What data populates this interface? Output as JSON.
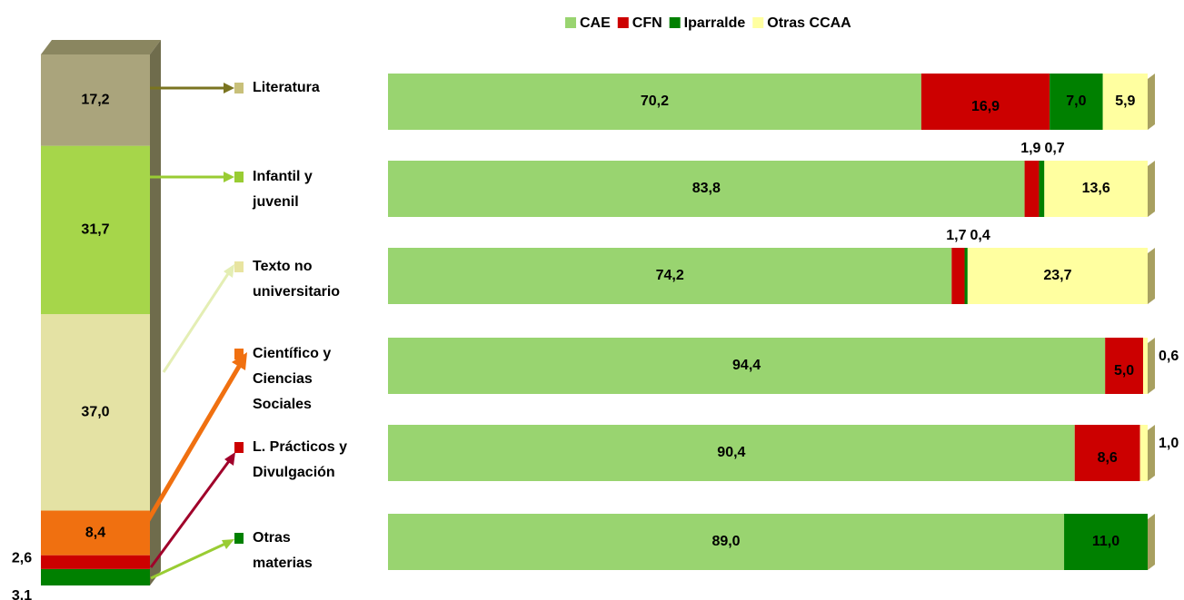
{
  "chart_data": [
    {
      "type": "stacked-column",
      "values": [
        3.1,
        2.6,
        8.4,
        37.0,
        31.7,
        17.2
      ],
      "value_labels": [
        "3,1",
        "2,6",
        "8,4",
        "37,0",
        "31,7",
        "17,2"
      ],
      "colors": [
        "#008000",
        "#cc0000",
        "#f07010",
        "#e4e2a4",
        "#a6d64a",
        "#aaa47c"
      ],
      "ylim": [
        0,
        100
      ]
    },
    {
      "type": "stacked-hbar",
      "categories": [
        "Literatura",
        "Infantil y\njuvenil",
        "Texto no\nuniversitario",
        "Científico y\nCiencias\nSociales",
        "L. Prácticos y\nDivulgación",
        "Otras\nmaterias"
      ],
      "category_colors": [
        "#c8c07a",
        "#99cc33",
        "#e8e4a0",
        "#f07010",
        "#cc0000",
        "#008000"
      ],
      "series": [
        {
          "name": "CAE",
          "color": "#99d470",
          "values": [
            70.2,
            83.8,
            74.2,
            94.4,
            90.4,
            89.0
          ],
          "value_labels": [
            "70,2",
            "83,8",
            "74,2",
            "94,4",
            "90,4",
            "89,0"
          ]
        },
        {
          "name": "CFN",
          "color": "#cc0000",
          "values": [
            16.9,
            1.9,
            1.7,
            5.0,
            8.6,
            null
          ],
          "value_labels": [
            "16,9",
            "1,9",
            "1,7",
            "5,0",
            "8,6",
            null
          ]
        },
        {
          "name": "Iparralde",
          "color": "#008000",
          "values": [
            7.0,
            0.7,
            0.4,
            null,
            null,
            11.0
          ],
          "value_labels": [
            "7,0",
            "0,7",
            "0,4",
            null,
            null,
            "11,0"
          ]
        },
        {
          "name": "Otras CCAA",
          "color": "#ffffa0",
          "values": [
            5.9,
            13.6,
            23.7,
            0.6,
            1.0,
            null
          ],
          "value_labels": [
            "5,9",
            "13,6",
            "23,7",
            "0,6",
            "1,0",
            null
          ]
        }
      ],
      "xlim": [
        0,
        100
      ],
      "legend": "top"
    }
  ]
}
